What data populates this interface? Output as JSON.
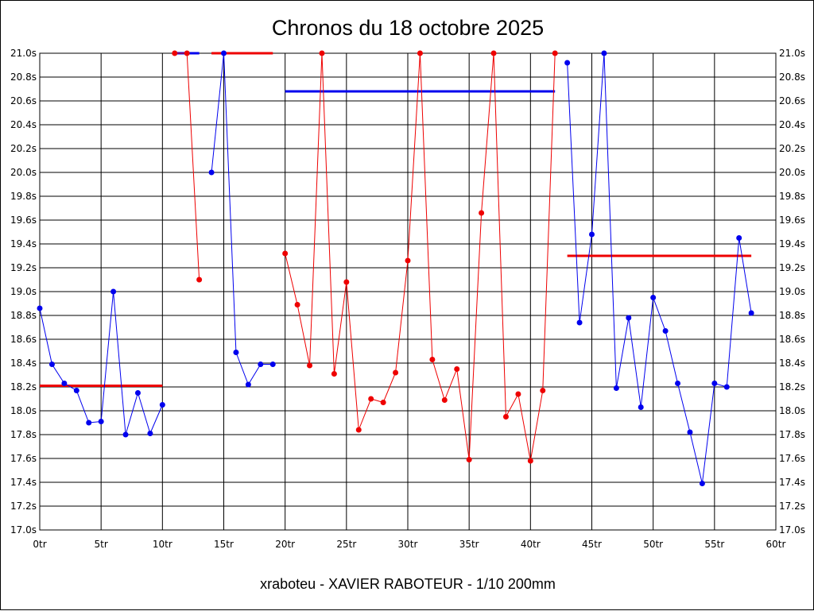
{
  "chart_data": {
    "type": "line",
    "title": "Chronos du 18 octobre 2025",
    "subtitle": "xraboteu - XAVIER RABOTEUR - 1/10 200mm",
    "xlabel": "",
    "ylabel": "",
    "xlim": [
      0,
      60
    ],
    "ylim": [
      17.0,
      21.0
    ],
    "grid": true,
    "x_ticks": [
      0,
      5,
      10,
      15,
      20,
      25,
      30,
      35,
      40,
      45,
      50,
      55,
      60
    ],
    "x_tick_labels": [
      "0tr",
      "5tr",
      "10tr",
      "15tr",
      "20tr",
      "25tr",
      "30tr",
      "35tr",
      "40tr",
      "45tr",
      "50tr",
      "55tr",
      "60tr"
    ],
    "y_ticks": [
      17.0,
      17.2,
      17.4,
      17.6,
      17.8,
      18.0,
      18.2,
      18.4,
      18.6,
      18.8,
      19.0,
      19.2,
      19.4,
      19.6,
      19.8,
      20.0,
      20.2,
      20.4,
      20.6,
      20.8,
      21.0
    ],
    "y_tick_labels": [
      "17.0s",
      "17.2s",
      "17.4s",
      "17.6s",
      "17.8s",
      "18.0s",
      "18.2s",
      "18.4s",
      "18.6s",
      "18.8s",
      "19.0s",
      "19.2s",
      "19.4s",
      "19.6s",
      "19.8s",
      "20.0s",
      "20.2s",
      "20.4s",
      "20.6s",
      "20.8s",
      "21.0s"
    ],
    "colors": {
      "blue": "#0000ee",
      "red": "#ee0000"
    },
    "series": [
      {
        "color": "blue",
        "x": [
          0,
          1,
          2,
          3,
          4,
          5,
          6,
          7,
          8,
          9,
          10
        ],
        "y": [
          18.86,
          18.39,
          18.23,
          18.17,
          17.9,
          17.91,
          19.0,
          17.8,
          18.15,
          17.81,
          18.05
        ]
      },
      {
        "color": "red",
        "x": [
          11,
          12,
          13
        ],
        "y": [
          21.0,
          21.0,
          19.1
        ]
      },
      {
        "color": "blue",
        "x": [
          14,
          15,
          16,
          17,
          18,
          19
        ],
        "y": [
          20.0,
          21.0,
          18.49,
          18.22,
          18.39,
          18.39
        ]
      },
      {
        "color": "red",
        "x": [
          20,
          21,
          22,
          23,
          24,
          25,
          26,
          27,
          28,
          29,
          30,
          31,
          32,
          33,
          34,
          35,
          36,
          37,
          38,
          39,
          40,
          41,
          42
        ],
        "y": [
          19.32,
          18.89,
          18.38,
          21.0,
          18.31,
          19.08,
          17.84,
          18.1,
          18.07,
          18.32,
          19.26,
          21.0,
          18.43,
          18.09,
          18.35,
          17.59,
          19.66,
          21.0,
          17.95,
          18.14,
          17.58,
          18.17,
          21.0
        ]
      },
      {
        "color": "blue",
        "x": [
          43,
          44,
          45,
          46,
          47,
          48,
          49,
          50,
          51,
          52,
          53,
          54,
          55,
          56,
          57,
          58
        ],
        "y": [
          20.92,
          18.74,
          19.48,
          21.0,
          18.19,
          18.78,
          18.03,
          18.95,
          18.67,
          18.23,
          17.82,
          17.39,
          18.23,
          18.2,
          19.45,
          18.82
        ]
      }
    ],
    "average_lines": [
      {
        "color": "red",
        "x": [
          0,
          10
        ],
        "y": 18.21
      },
      {
        "color": "blue",
        "x": [
          11,
          13
        ],
        "y": 21.0
      },
      {
        "color": "red",
        "x": [
          14,
          19
        ],
        "y": 21.0
      },
      {
        "color": "blue",
        "x": [
          20,
          42
        ],
        "y": 20.68
      },
      {
        "color": "red",
        "x": [
          43,
          58
        ],
        "y": 19.3
      }
    ]
  }
}
